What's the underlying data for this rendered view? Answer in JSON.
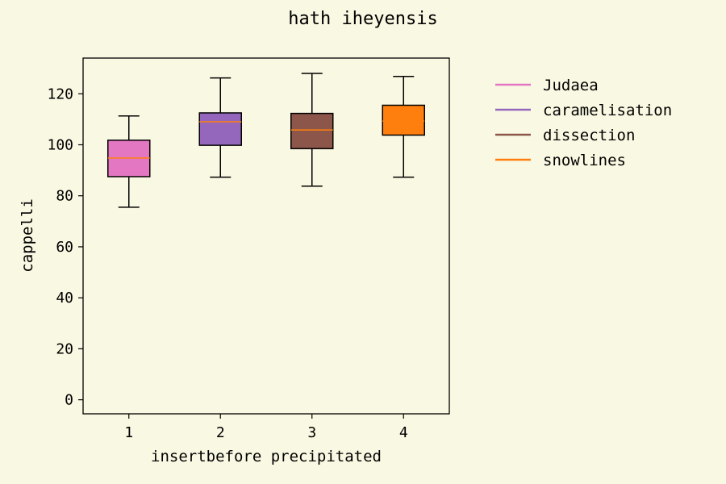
{
  "chart_data": {
    "type": "box",
    "title": "hath iheyensis",
    "xlabel": "insertbefore precipitated",
    "ylabel": "cappelli",
    "categories": [
      "1",
      "2",
      "3",
      "4"
    ],
    "y_ticks": [
      "0",
      "20",
      "40",
      "60",
      "80",
      "100",
      "120"
    ],
    "ylim": [
      -5.5,
      134
    ],
    "grid": false,
    "legend_position": "outside-right",
    "median_color": "#ff7f0e",
    "series": [
      {
        "name": "Judaea",
        "color": "#e377c2",
        "whisker_low": 75.5,
        "q1": 87.5,
        "median": 94.8,
        "q3": 101.8,
        "whisker_high": 111.3
      },
      {
        "name": "caramelisation",
        "color": "#9467bd",
        "whisker_low": 87.3,
        "q1": 99.8,
        "median": 109.0,
        "q3": 112.5,
        "whisker_high": 126.2
      },
      {
        "name": "dissection",
        "color": "#8c564b",
        "whisker_low": 83.8,
        "q1": 98.5,
        "median": 105.8,
        "q3": 112.3,
        "whisker_high": 128.0
      },
      {
        "name": "snowlines",
        "color": "#ff7f0e",
        "whisker_low": 87.3,
        "q1": 103.8,
        "median": 109.3,
        "q3": 115.5,
        "whisker_high": 126.8
      }
    ]
  }
}
